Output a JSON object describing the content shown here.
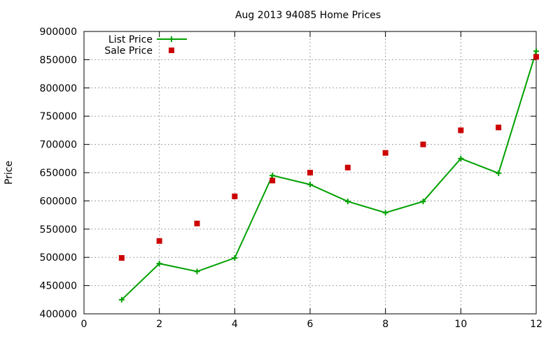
{
  "chart_data": {
    "type": "line",
    "title": "Aug 2013 94085 Home Prices",
    "xlabel": "",
    "ylabel": "Price",
    "xlim": [
      0,
      12
    ],
    "ylim": [
      400000,
      900000
    ],
    "xticks": [
      0,
      2,
      4,
      6,
      8,
      10,
      12
    ],
    "yticks": [
      400000,
      450000,
      500000,
      550000,
      600000,
      650000,
      700000,
      750000,
      800000,
      850000,
      900000
    ],
    "grid": true,
    "legend_position": "top-left",
    "series": [
      {
        "name": "List Price",
        "style": "line-with-plus-markers",
        "color": "#00a000",
        "x": [
          1,
          2,
          3,
          4,
          5,
          6,
          7,
          8,
          9,
          10,
          11,
          12
        ],
        "y": [
          425000,
          489000,
          475000,
          499000,
          645000,
          629000,
          599000,
          579000,
          599000,
          675000,
          649000,
          865000
        ]
      },
      {
        "name": "Sale Price",
        "style": "square-markers",
        "color": "#cc0000",
        "x": [
          1,
          2,
          3,
          4,
          5,
          6,
          7,
          8,
          9,
          10,
          11,
          12
        ],
        "y": [
          499000,
          529000,
          560000,
          608000,
          636000,
          650000,
          659000,
          685000,
          700000,
          725000,
          730000,
          855000
        ]
      }
    ]
  }
}
